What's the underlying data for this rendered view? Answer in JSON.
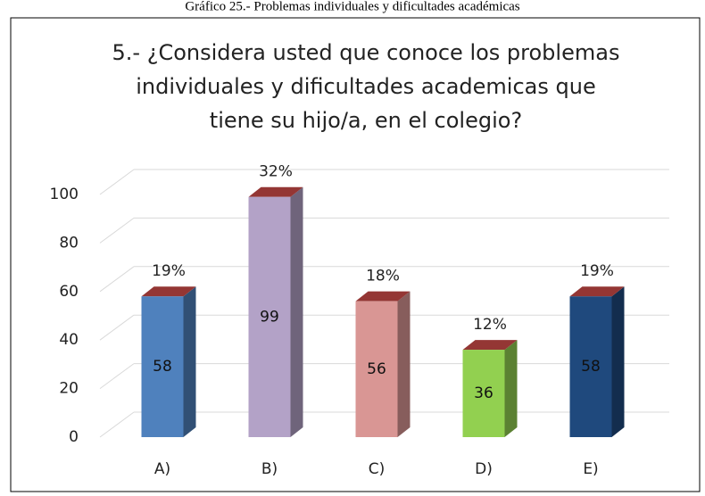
{
  "caption": "Gráfico 25.- Problemas individuales y dificultades académicas",
  "chart_data": {
    "type": "bar3d",
    "title": [
      "5.- ¿Considera usted que conoce los problemas",
      "individuales y dificultades academicas que",
      "tiene su hijo/a, en el colegio?"
    ],
    "categories": [
      "A)",
      "B)",
      "C)",
      "D)",
      "E)"
    ],
    "values": [
      58,
      99,
      56,
      36,
      58
    ],
    "percent_labels": [
      "19%",
      "32%",
      "18%",
      "12%",
      "19%"
    ],
    "colors": [
      "#4f81bd",
      "#b3a2c7",
      "#d99694",
      "#92d050",
      "#1f497d"
    ],
    "top_color": "#943634",
    "ylim": [
      0,
      100
    ],
    "yticks": [
      0,
      20,
      40,
      60,
      80,
      100
    ],
    "grid": true
  }
}
